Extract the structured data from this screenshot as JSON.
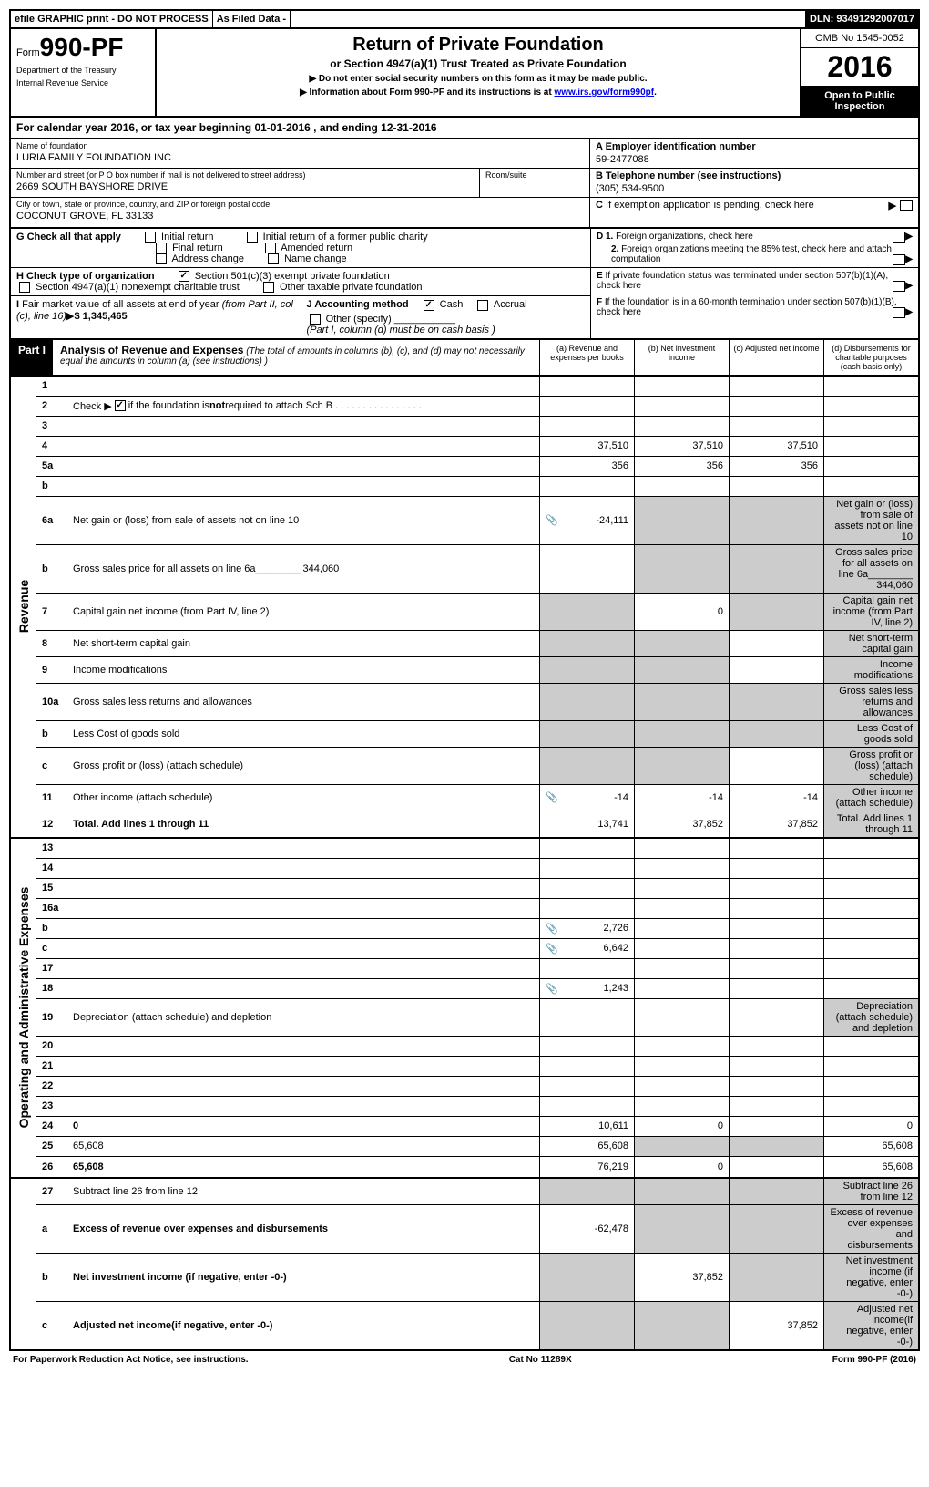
{
  "top": {
    "efile": "efile GRAPHIC print - DO NOT PROCESS",
    "asfiled": "As Filed Data -",
    "dln": "DLN: 93491292007017"
  },
  "header": {
    "formPrefix": "Form",
    "formNumber": "990-PF",
    "dept1": "Department of the Treasury",
    "dept2": "Internal Revenue Service",
    "title": "Return of Private Foundation",
    "subtitle": "or Section 4947(a)(1) Trust Treated as Private Foundation",
    "inst1": "▶ Do not enter social security numbers on this form as it may be made public.",
    "inst2": "▶ Information about Form 990-PF and its instructions is at ",
    "instLink": "www.irs.gov/form990pf",
    "omb": "OMB No 1545-0052",
    "year": "2016",
    "openpublic": "Open to Public Inspection"
  },
  "calyear": "For calendar year 2016, or tax year beginning 01-01-2016             , and ending 12-31-2016",
  "foundation": {
    "nameLabel": "Name of foundation",
    "name": "LURIA FAMILY FOUNDATION INC",
    "streetLabel": "Number and street (or P O  box number if mail is not delivered to street address)",
    "street": "2669 SOUTH BAYSHORE DRIVE",
    "roomLabel": "Room/suite",
    "cityLabel": "City or town, state or province, country, and ZIP or foreign postal code",
    "city": "COCONUT GROVE, FL  33133",
    "einLabel": "A Employer identification number",
    "ein": "59-2477088",
    "phoneLabel": "B Telephone number (see instructions)",
    "phone": "(305) 534-9500",
    "cLabel": "C If exemption application is pending, check here"
  },
  "checks": {
    "g": "G Check all that apply",
    "gInitial": "Initial return",
    "gInitialFormer": "Initial return of a former public charity",
    "gFinal": "Final return",
    "gAmended": "Amended return",
    "gAddress": "Address change",
    "gName": "Name change",
    "h": "H Check type of organization",
    "h501": "Section 501(c)(3) exempt private foundation",
    "h4947": "Section 4947(a)(1) nonexempt charitable trust",
    "hOther": "Other taxable private foundation",
    "i": "I Fair market value of all assets at end of year (from Part II, col  (c), line 16)",
    "iValue": "$  1,345,465",
    "j": "J Accounting method",
    "jCash": "Cash",
    "jAccrual": "Accrual",
    "jOther": "Other (specify)",
    "jNote": "(Part I, column (d) must be on cash basis )",
    "d1": "D 1. Foreign organizations, check here",
    "d2": "2. Foreign organizations meeting the 85% test, check here and attach computation",
    "e": "E If private foundation status was terminated under section 507(b)(1)(A), check here",
    "f": "F If the foundation is in a 60-month termination under section 507(b)(1)(B), check here"
  },
  "part1": {
    "label": "Part I",
    "title": "Analysis of Revenue and Expenses",
    "titleNote": "(The total of amounts in columns (b), (c), and (d) may not necessarily equal the amounts in column (a) (see instructions) )",
    "colA": "(a)  Revenue and expenses per books",
    "colB": "(b)  Net investment income",
    "colC": "(c)  Adjusted net income",
    "colD": "(d)  Disbursements for charitable purposes (cash basis only)",
    "revenueLabel": "Revenue",
    "expensesLabel": "Operating and Administrative Expenses"
  },
  "rows": [
    {
      "n": "1",
      "d": "",
      "a": "",
      "b": "",
      "c": ""
    },
    {
      "n": "2",
      "d": "",
      "checked": true,
      "a": "",
      "b": "",
      "c": ""
    },
    {
      "n": "3",
      "d": "",
      "a": "",
      "b": "",
      "c": ""
    },
    {
      "n": "4",
      "d": "",
      "a": "37,510",
      "b": "37,510",
      "c": "37,510"
    },
    {
      "n": "5a",
      "d": "",
      "a": "356",
      "b": "356",
      "c": "356"
    },
    {
      "n": "b",
      "d": "",
      "a": "",
      "b": "",
      "c": ""
    },
    {
      "n": "6a",
      "d": "Net gain or (loss) from sale of assets not on line 10",
      "icon": true,
      "a": "-24,111",
      "bGray": true,
      "cGray": true,
      "dGray": true
    },
    {
      "n": "b",
      "d": "Gross sales price for all assets on line 6a________  344,060",
      "a": "",
      "bGray": true,
      "cGray": true,
      "dGray": true
    },
    {
      "n": "7",
      "d": "Capital gain net income (from Part IV, line 2)",
      "aGray": true,
      "b": "0",
      "cGray": true,
      "dGray": true
    },
    {
      "n": "8",
      "d": "Net short-term capital gain",
      "aGray": true,
      "bGray": true,
      "c": "",
      "dGray": true
    },
    {
      "n": "9",
      "d": "Income modifications",
      "aGray": true,
      "bGray": true,
      "c": "",
      "dGray": true
    },
    {
      "n": "10a",
      "d": "Gross sales less returns and allowances",
      "aGray": true,
      "bGray": true,
      "cGray": true,
      "dGray": true
    },
    {
      "n": "b",
      "d": "Less  Cost of goods sold",
      "aGray": true,
      "bGray": true,
      "cGray": true,
      "dGray": true
    },
    {
      "n": "c",
      "d": "Gross profit or (loss) (attach schedule)",
      "aGray": true,
      "bGray": true,
      "c": "",
      "dGray": true
    },
    {
      "n": "11",
      "d": "Other income (attach schedule)",
      "icon": true,
      "a": "-14",
      "b": "-14",
      "c": "-14",
      "dGray": true
    },
    {
      "n": "12",
      "d": "Total. Add lines 1 through 11",
      "bold": true,
      "a": "13,741",
      "b": "37,852",
      "c": "37,852",
      "dGray": true,
      "sectionEnd": true
    }
  ],
  "expRows": [
    {
      "n": "13",
      "d": "",
      "a": "",
      "b": "",
      "c": ""
    },
    {
      "n": "14",
      "d": "",
      "a": "",
      "b": "",
      "c": ""
    },
    {
      "n": "15",
      "d": "",
      "a": "",
      "b": "",
      "c": ""
    },
    {
      "n": "16a",
      "d": "",
      "a": "",
      "b": "",
      "c": ""
    },
    {
      "n": "b",
      "d": "",
      "icon": true,
      "a": "2,726",
      "b": "",
      "c": ""
    },
    {
      "n": "c",
      "d": "",
      "icon": true,
      "a": "6,642",
      "b": "",
      "c": ""
    },
    {
      "n": "17",
      "d": "",
      "a": "",
      "b": "",
      "c": ""
    },
    {
      "n": "18",
      "d": "",
      "icon": true,
      "a": "1,243",
      "b": "",
      "c": ""
    },
    {
      "n": "19",
      "d": "Depreciation (attach schedule) and depletion",
      "a": "",
      "b": "",
      "c": "",
      "dGray": true
    },
    {
      "n": "20",
      "d": "",
      "a": "",
      "b": "",
      "c": ""
    },
    {
      "n": "21",
      "d": "",
      "a": "",
      "b": "",
      "c": ""
    },
    {
      "n": "22",
      "d": "",
      "a": "",
      "b": "",
      "c": ""
    },
    {
      "n": "23",
      "d": "",
      "a": "",
      "b": "",
      "c": ""
    },
    {
      "n": "24",
      "d": "0",
      "bold": true,
      "a": "10,611",
      "b": "0",
      "c": ""
    },
    {
      "n": "25",
      "d": "65,608",
      "a": "65,608",
      "bGray": true,
      "cGray": true
    },
    {
      "n": "26",
      "d": "65,608",
      "bold": true,
      "a": "76,219",
      "b": "0",
      "c": "",
      "sectionEnd": true
    }
  ],
  "bottomRows": [
    {
      "n": "27",
      "d": "Subtract line 26 from line 12",
      "aGray": true,
      "bGray": true,
      "cGray": true,
      "dGray": true
    },
    {
      "n": "a",
      "d": "Excess of revenue over expenses and disbursements",
      "bold": true,
      "a": "-62,478",
      "bGray": true,
      "cGray": true,
      "dGray": true
    },
    {
      "n": "b",
      "d": "Net investment income (if negative, enter -0-)",
      "bold": true,
      "aGray": true,
      "b": "37,852",
      "cGray": true,
      "dGray": true
    },
    {
      "n": "c",
      "d": "Adjusted net income(if negative, enter -0-)",
      "bold": true,
      "aGray": true,
      "bGray": true,
      "c": "37,852",
      "dGray": true
    }
  ],
  "footer": {
    "left": "For Paperwork Reduction Act Notice, see instructions.",
    "center": "Cat  No  11289X",
    "right": "Form 990-PF (2016)"
  }
}
